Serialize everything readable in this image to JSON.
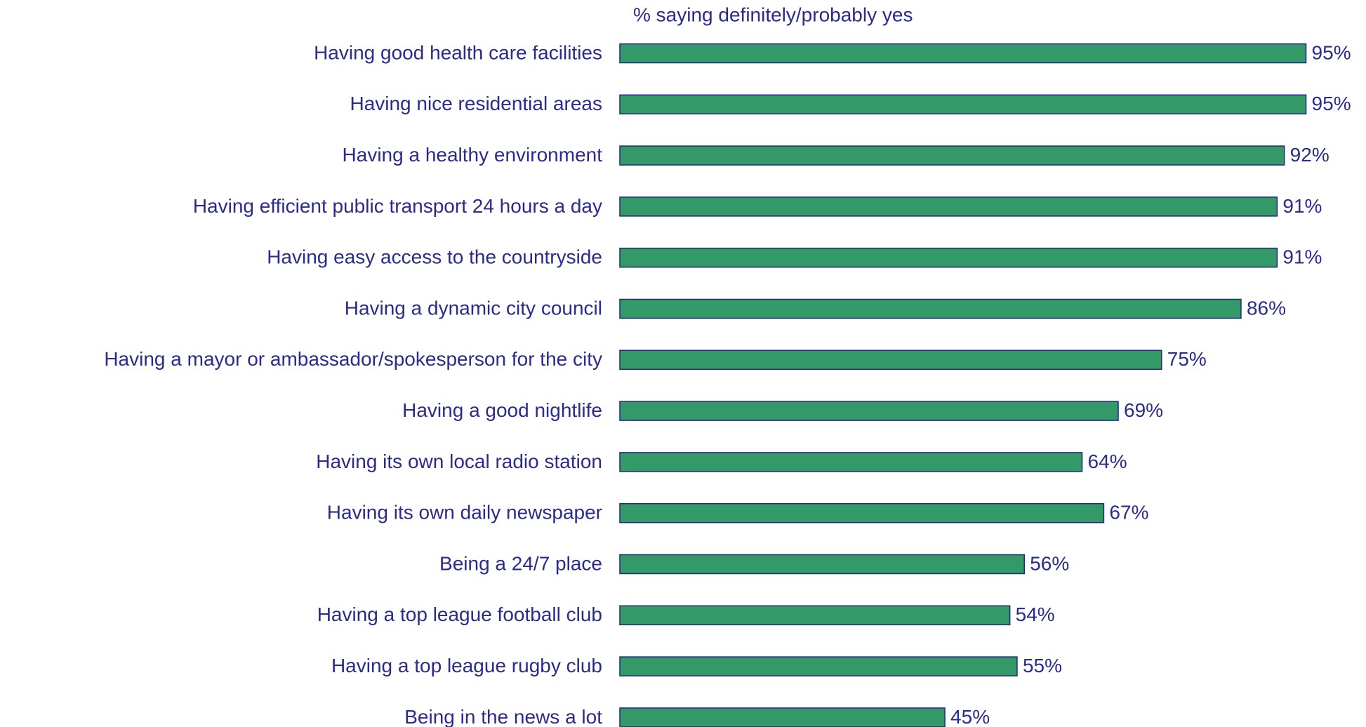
{
  "chart_data": {
    "type": "bar",
    "orientation": "horizontal",
    "subtitle": "% saying definitely/probably yes",
    "categories": [
      "Having good health care facilities",
      "Having nice residential areas",
      "Having a healthy environment",
      "Having efficient public transport 24 hours a day",
      "Having easy access to the countryside",
      "Having a dynamic city council",
      "Having a mayor or ambassador/spokesperson for the city",
      "Having a good nightlife",
      "Having its own local radio station",
      "Having its own daily newspaper",
      "Being a 24/7 place",
      "Having a top league football club",
      "Having a top league rugby club",
      "Being in the news a lot"
    ],
    "values": [
      95,
      95,
      92,
      91,
      91,
      86,
      75,
      69,
      64,
      67,
      56,
      54,
      55,
      45
    ],
    "value_labels": [
      "95%",
      "95%",
      "92%",
      "91%",
      "91%",
      "86%",
      "75%",
      "69%",
      "64%",
      "67%",
      "56%",
      "54%",
      "55%",
      "45%"
    ],
    "color": "#339966"
  }
}
